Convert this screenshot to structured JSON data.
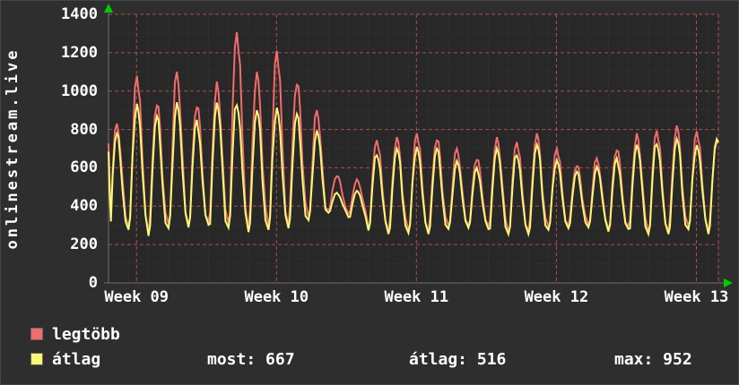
{
  "ylabel": "onlinestream.live",
  "colors": {
    "page_bg": "#2e2e2e",
    "plot_bg": "#282828",
    "text": "#ffffff",
    "axis": "#6f6f6f",
    "arrow": "#00cc00",
    "major_grid": "#c05858",
    "minor_grid": "#3a3a3a"
  },
  "chart_data": {
    "type": "line",
    "title": "onlinestream.live",
    "x_axis": {
      "labels": [
        "Week 09",
        "Week 10",
        "Week 11",
        "Week 12",
        "Week 13"
      ],
      "label_positions_days": [
        1.4,
        8.4,
        15.4,
        22.4,
        29.4
      ],
      "span_days": 30.5
    },
    "y_axis": {
      "min": 0,
      "max": 1400,
      "ticks": [
        0,
        200,
        400,
        600,
        800,
        1000,
        1200,
        1400
      ]
    },
    "series": [
      {
        "name": "legtöbb",
        "color": "#f26c6c",
        "daily_peaks": [
          830,
          1080,
          950,
          1100,
          930,
          1050,
          1320,
          1100,
          1210,
          1060,
          900,
          560,
          540,
          750,
          760,
          780,
          760,
          700,
          650,
          760,
          740,
          780,
          700,
          620,
          650,
          700,
          780,
          800,
          820,
          790,
          750
        ]
      },
      {
        "name": "átlag",
        "color": "#f9f973",
        "daily_peaks": [
          780,
          950,
          870,
          950,
          850,
          940,
          950,
          900,
          930,
          880,
          800,
          470,
          480,
          680,
          700,
          720,
          700,
          640,
          600,
          700,
          680,
          720,
          650,
          580,
          610,
          650,
          720,
          740,
          750,
          730,
          750
        ]
      }
    ],
    "daily_troughs": [
      280,
      270,
      260,
      270,
      300,
      280,
      290,
      280,
      270,
      300,
      320,
      380,
      350,
      280,
      270,
      260,
      270,
      280,
      300,
      270,
      260,
      270,
      280,
      300,
      290,
      280,
      270,
      260,
      270,
      280,
      270
    ],
    "stats": {
      "most": 667,
      "atlag": 516,
      "max": 952
    },
    "legend_position": "bottom",
    "grid": "on"
  },
  "legend": {
    "stats": [
      "most: 667",
      "átlag: 516",
      "max: 952"
    ]
  }
}
